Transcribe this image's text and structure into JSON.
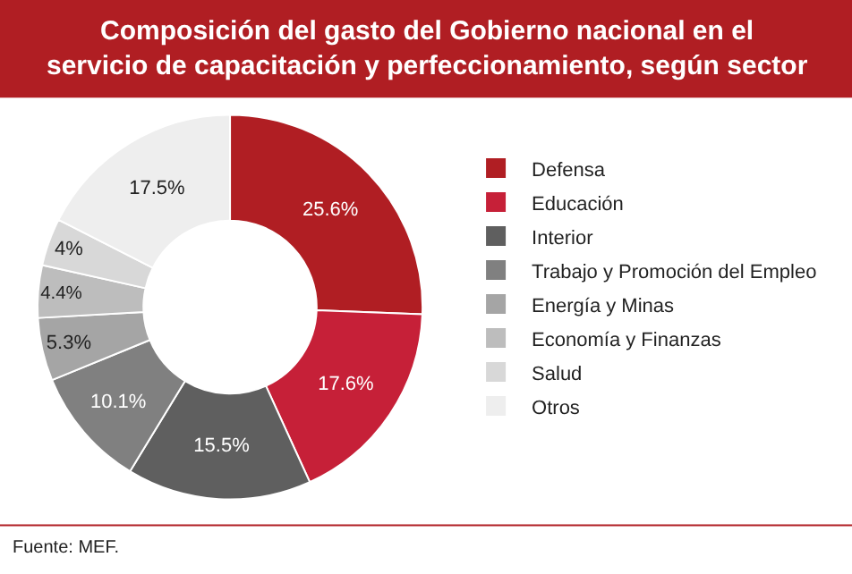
{
  "chart_data": {
    "type": "donut",
    "title": "Composición del gasto del Gobierno nacional en el servicio de capacitación y perfeccionamiento, según sector",
    "categories": [
      "Defensa",
      "Educación",
      "Interior",
      "Trabajo y Promoción del Empleo",
      "Energía y Minas",
      "Economía y Finanzas",
      "Salud",
      "Otros"
    ],
    "values": [
      25.6,
      17.6,
      15.5,
      10.1,
      5.3,
      4.4,
      4,
      17.5
    ],
    "value_labels": [
      "25.6%",
      "17.6%",
      "15.5%",
      "10.1%",
      "5.3%",
      "4.4%",
      "4%",
      "17.5%"
    ],
    "colors": [
      "#b01e23",
      "#c62038",
      "#5f5f5f",
      "#808080",
      "#a5a5a5",
      "#bdbdbd",
      "#d8d8d8",
      "#eeeeee"
    ],
    "legend": "right",
    "annotations": [
      "Fuente: MEF."
    ]
  }
}
